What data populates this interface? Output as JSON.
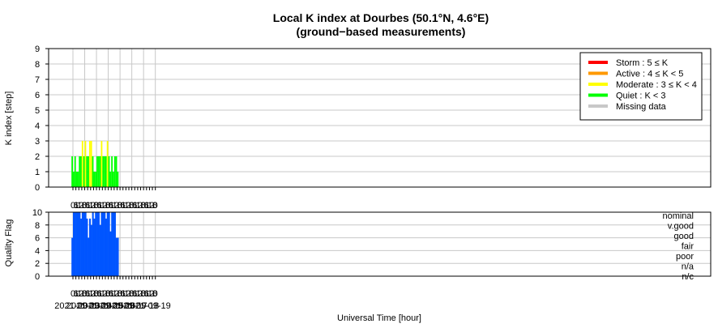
{
  "title": "Local K index at Dourbes (50.1°N, 4.6°E)",
  "subtitle": "(ground−based measurements)",
  "colors": {
    "storm": "#ff0000",
    "active": "#ff9900",
    "moderate": "#ffff00",
    "quiet": "#00ff00",
    "missing": "#c8c8c8",
    "quality": "#0055ff",
    "grid": "#c8c8c8"
  },
  "chart_data": [
    {
      "type": "bar",
      "title": "Local K index at Dourbes (50.1°N, 4.6°E)",
      "ylabel": "K index [step]",
      "ylim": [
        0,
        9
      ],
      "y_ticks": [
        "0",
        "1",
        "2",
        "3",
        "4",
        "5",
        "6",
        "7",
        "8",
        "9"
      ],
      "x_ticks": [
        "0",
        "6",
        "12",
        "18",
        "0",
        "6",
        "12",
        "18",
        "0",
        "6",
        "12",
        "18",
        "0",
        "6",
        "12",
        "18",
        "0",
        "6",
        "12",
        "18",
        "0",
        "6",
        "12",
        "18",
        "0",
        "6",
        "12",
        "18",
        "0"
      ],
      "x_start": "2021-09-13 00:00",
      "bin_hours": 3,
      "values": [
        2,
        1,
        2,
        1,
        1,
        2,
        2,
        3,
        2,
        3,
        2,
        2,
        3,
        3,
        2,
        1,
        1,
        2,
        2,
        2,
        3,
        2,
        2,
        2,
        3,
        2,
        1,
        2,
        1,
        2,
        2,
        1,
        0,
        0,
        0,
        0,
        0,
        0,
        0,
        0,
        0,
        0,
        0,
        0,
        0,
        0,
        0,
        0,
        0,
        0,
        0,
        0,
        0,
        0,
        0,
        0
      ],
      "available_bins": 32,
      "legend_position": "top-right",
      "legend": [
        {
          "label": "Storm : 5 ≤ K",
          "color": "#ff0000"
        },
        {
          "label": "Active : 4 ≤ K < 5",
          "color": "#ff9900"
        },
        {
          "label": "Moderate : 3 ≤ K < 4",
          "color": "#ffff00"
        },
        {
          "label": "Quiet : K < 3",
          "color": "#00ff00"
        },
        {
          "label": "Missing data",
          "color": "#c8c8c8"
        }
      ],
      "grid": true
    },
    {
      "type": "bar",
      "ylabel": "Quality Flag",
      "ylim": [
        0,
        10
      ],
      "y_ticks": [
        "0",
        "2",
        "4",
        "6",
        "8",
        "10"
      ],
      "quality_levels": [
        "nominal",
        "v.good",
        "good",
        "fair",
        "poor",
        "n/a",
        "n/c"
      ],
      "x_start": "2021-09-13 00:00",
      "bin_hours": 3,
      "values": [
        6,
        10,
        10,
        10,
        10,
        10,
        9,
        10,
        10,
        10,
        9,
        6,
        9,
        8,
        10,
        9,
        10,
        10,
        10,
        8,
        10,
        10,
        10,
        9,
        10,
        10,
        7,
        10,
        10,
        10,
        6,
        6
      ],
      "xlabel": "Universal Time [hour]",
      "date_labels": [
        "2021-09-13",
        "2021-09-14",
        "2021-09-15",
        "2021-09-16",
        "2021-09-17",
        "2021-09-18",
        "2021-09-19"
      ],
      "grid": true
    }
  ]
}
